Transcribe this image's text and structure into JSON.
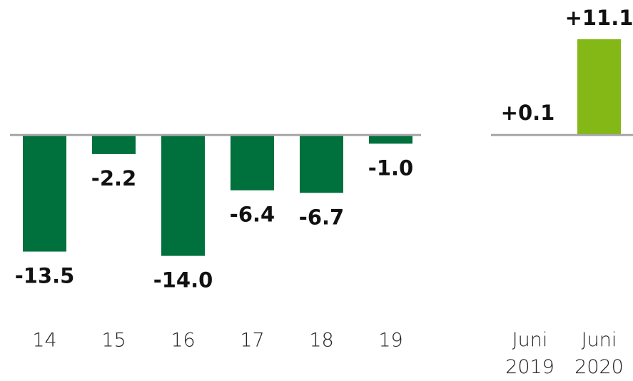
{
  "chart_data": [
    {
      "type": "bar",
      "categories": [
        "14",
        "15",
        "16",
        "17",
        "18",
        "19"
      ],
      "values": [
        -13.5,
        -2.2,
        -14.0,
        -6.4,
        -6.7,
        -1.0
      ],
      "value_labels": [
        "-13.5",
        "-2.2",
        "-14.0",
        "-6.4",
        "-6.7",
        "-1.0"
      ],
      "color": "#00703c",
      "ylim": [
        -18,
        13.5
      ]
    },
    {
      "type": "bar",
      "categories": [
        "Juni 2019",
        "Juni 2020"
      ],
      "values": [
        0.1,
        11.1
      ],
      "value_labels": [
        "+0.1",
        "+11.1"
      ],
      "color": "#84b817",
      "ylim": [
        -18,
        13.5
      ]
    }
  ]
}
